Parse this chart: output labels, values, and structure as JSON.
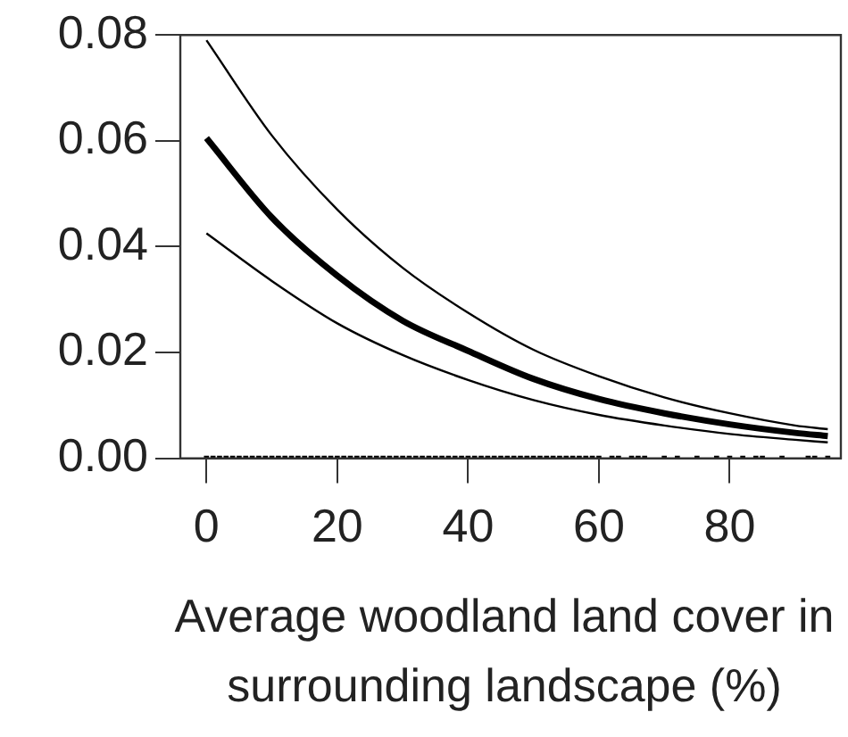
{
  "chart_data": {
    "type": "line",
    "xlabel": "Average woodland land cover in surrounding landscape (%)",
    "xlim": [
      -4,
      97
    ],
    "xticks": [
      0,
      20,
      40,
      60,
      80
    ],
    "ylim": [
      0,
      0.08
    ],
    "yticks": [
      {
        "value": 0,
        "label": "0.00"
      },
      {
        "value": 0.02,
        "label": "0.02"
      },
      {
        "value": 0.04,
        "label": "0.04"
      },
      {
        "value": 0.06,
        "label": "0.06"
      },
      {
        "value": 0.08,
        "label": "0.08"
      }
    ],
    "grid": false,
    "legend": false,
    "series": [
      {
        "type": "line",
        "color": "#000000",
        "x": [
          0,
          10,
          20,
          30,
          40,
          50,
          60,
          70,
          80,
          90,
          95
        ],
        "values": [
          0.0605,
          0.0455,
          0.0345,
          0.026,
          0.0203,
          0.015,
          0.0112,
          0.0085,
          0.0064,
          0.0048,
          0.0042
        ]
      },
      {
        "color": "#000000",
        "x": [
          0,
          10,
          20,
          30,
          40,
          50,
          60,
          70,
          80,
          90,
          95
        ],
        "values": [
          0.0425,
          0.0335,
          0.0255,
          0.0195,
          0.0148,
          0.011,
          0.0082,
          0.0062,
          0.0046,
          0.0035,
          0.003
        ]
      },
      {
        "color": "#000000",
        "x": [
          0,
          10,
          20,
          30,
          40,
          50,
          60,
          70,
          80,
          90,
          95
        ],
        "values": [
          0.079,
          0.061,
          0.047,
          0.036,
          0.0275,
          0.0205,
          0.0155,
          0.0115,
          0.0085,
          0.0062,
          0.0055
        ]
      },
      {
        "type": "scatter",
        "marker": "square",
        "color": "#000000",
        "x": [
          0,
          1,
          2,
          3,
          4,
          5,
          6,
          7,
          8,
          9,
          10,
          11,
          12,
          13,
          14,
          15,
          16,
          17,
          18,
          19,
          20,
          21,
          22,
          23,
          24,
          25,
          26,
          27,
          28,
          29,
          30,
          31,
          32,
          33,
          34,
          35,
          36,
          37,
          38,
          39,
          40,
          41,
          42,
          43,
          44,
          45,
          46,
          47,
          48,
          49,
          50,
          51,
          52,
          53,
          54,
          55,
          56,
          57,
          58,
          59,
          60,
          62,
          63,
          65,
          66,
          67,
          70,
          72,
          75,
          78,
          80,
          82,
          84,
          85,
          88,
          92,
          93,
          95
        ],
        "values": [
          0,
          0,
          0,
          0,
          0,
          0,
          0,
          0,
          0,
          0,
          0,
          0,
          0,
          0,
          0,
          0,
          0,
          0,
          0,
          0,
          0,
          0,
          0,
          0,
          0,
          0,
          0,
          0,
          0,
          0,
          0,
          0,
          0,
          0,
          0,
          0,
          0,
          0,
          0,
          0,
          0,
          0,
          0,
          0,
          0,
          0,
          0,
          0,
          0,
          0,
          0,
          0,
          0,
          0,
          0,
          0,
          0,
          0,
          0,
          0,
          0,
          0,
          0,
          0,
          0,
          0,
          0,
          0,
          0,
          0,
          0,
          0,
          0,
          0,
          0,
          0,
          0,
          0
        ]
      }
    ]
  }
}
